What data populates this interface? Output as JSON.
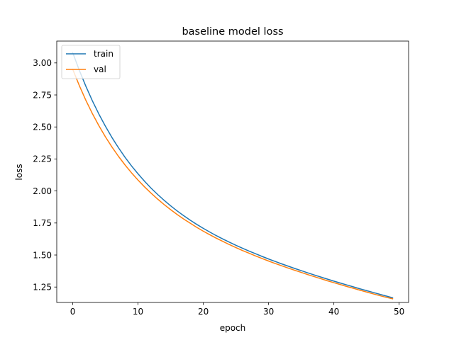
{
  "chart_data": {
    "type": "line",
    "title": "baseline model loss",
    "xlabel": "epoch",
    "ylabel": "loss",
    "xlim": [
      -2.45,
      51.45
    ],
    "ylim": [
      1.1295,
      3.1705
    ],
    "xticks": [
      0,
      10,
      20,
      30,
      40,
      50
    ],
    "xtick_labels": [
      "0",
      "10",
      "20",
      "30",
      "40",
      "50"
    ],
    "yticks": [
      1.25,
      1.5,
      1.75,
      2.0,
      2.25,
      2.5,
      2.75,
      3.0
    ],
    "ytick_labels": [
      "1.25",
      "1.50",
      "1.75",
      "2.00",
      "2.25",
      "2.50",
      "2.75",
      "3.00"
    ],
    "grid": false,
    "legend_position": "top-left",
    "x": [
      0,
      1,
      2,
      3,
      4,
      5,
      6,
      7,
      8,
      9,
      10,
      11,
      12,
      13,
      14,
      15,
      16,
      17,
      18,
      19,
      20,
      21,
      22,
      23,
      24,
      25,
      26,
      27,
      28,
      29,
      30,
      31,
      32,
      33,
      34,
      35,
      36,
      37,
      38,
      39,
      40,
      41,
      42,
      43,
      44,
      45,
      46,
      47,
      48,
      49
    ],
    "series": [
      {
        "name": "train",
        "color": "#1f77b4",
        "values": [
          3.08,
          2.943,
          2.819,
          2.705,
          2.601,
          2.506,
          2.418,
          2.338,
          2.264,
          2.196,
          2.134,
          2.076,
          2.022,
          1.973,
          1.927,
          1.884,
          1.844,
          1.807,
          1.772,
          1.739,
          1.708,
          1.679,
          1.651,
          1.625,
          1.6,
          1.576,
          1.553,
          1.531,
          1.51,
          1.489,
          1.469,
          1.45,
          1.431,
          1.413,
          1.395,
          1.378,
          1.361,
          1.344,
          1.328,
          1.312,
          1.296,
          1.281,
          1.266,
          1.251,
          1.236,
          1.222,
          1.208,
          1.194,
          1.18,
          1.166
        ]
      },
      {
        "name": "val",
        "color": "#ff7f0e",
        "values": [
          2.95,
          2.824,
          2.709,
          2.605,
          2.51,
          2.423,
          2.344,
          2.271,
          2.204,
          2.142,
          2.085,
          2.032,
          1.983,
          1.937,
          1.894,
          1.854,
          1.816,
          1.781,
          1.748,
          1.716,
          1.686,
          1.658,
          1.631,
          1.606,
          1.581,
          1.558,
          1.535,
          1.514,
          1.493,
          1.473,
          1.453,
          1.434,
          1.416,
          1.398,
          1.381,
          1.364,
          1.347,
          1.331,
          1.315,
          1.299,
          1.284,
          1.269,
          1.254,
          1.24,
          1.225,
          1.211,
          1.197,
          1.183,
          1.17,
          1.158
        ]
      }
    ]
  }
}
